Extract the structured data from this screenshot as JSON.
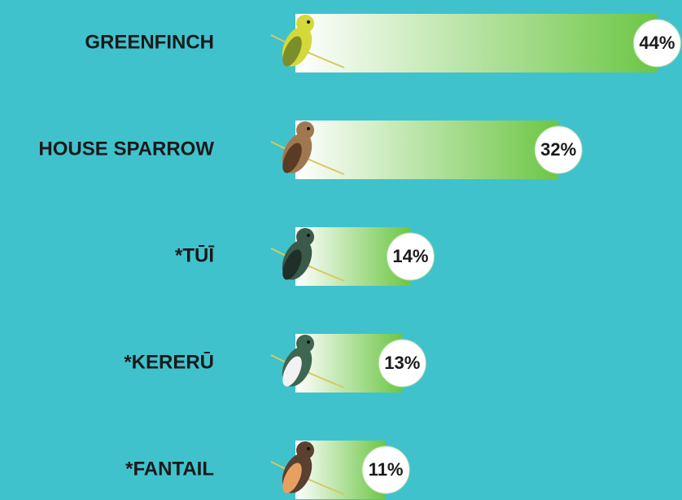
{
  "chart_data": {
    "type": "bar",
    "orientation": "horizontal",
    "categories": [
      "GREENFINCH",
      "HOUSE SPARROW",
      "*TŪĪ",
      "*KERERŪ",
      "*FANTAIL"
    ],
    "values": [
      44,
      32,
      14,
      13,
      11
    ],
    "value_labels": [
      "44%",
      "32%",
      "14%",
      "13%",
      "11%"
    ],
    "color": "#6cc644"
  }
}
